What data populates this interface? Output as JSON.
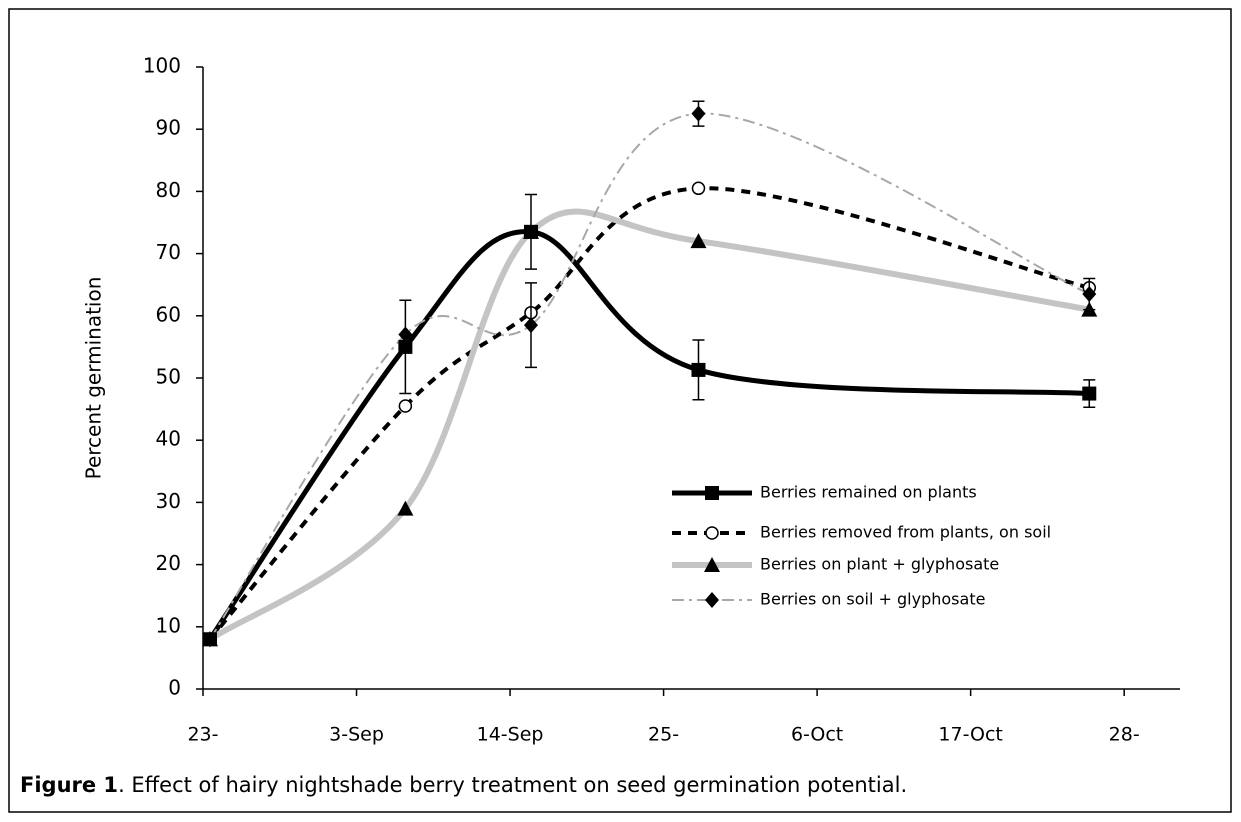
{
  "chart_data": {
    "type": "line",
    "ylabel": "Percent germination",
    "figure_label": "Figure 1",
    "caption": ". Effect of hairy nightshade berry treatment on seed germination potential.",
    "x": [
      235.5,
      249.5,
      258.5,
      270.5,
      298.5
    ],
    "xlim": [
      235,
      305
    ],
    "xticks": [
      {
        "value": 235,
        "label": "23-"
      },
      {
        "value": 246,
        "label": "3-Sep"
      },
      {
        "value": 257,
        "label": "14-Sep"
      },
      {
        "value": 268,
        "label": "25-"
      },
      {
        "value": 279,
        "label": "6-Oct"
      },
      {
        "value": 290,
        "label": "17-Oct"
      },
      {
        "value": 301,
        "label": "28-"
      }
    ],
    "ylim": [
      0,
      100
    ],
    "yticks": [
      0,
      10,
      20,
      30,
      40,
      50,
      60,
      70,
      80,
      90,
      100
    ],
    "series": [
      {
        "name": "Berries remained on plants",
        "color": "#000000",
        "marker": "square",
        "dash": "solid",
        "width": 5,
        "values": [
          8,
          55,
          73.5,
          51.3,
          47.5
        ],
        "errors": [
          null,
          7.5,
          6,
          4.8,
          2.2
        ]
      },
      {
        "name": "Berries removed from plants, on soil",
        "color": "#000000",
        "marker": "circle",
        "dash": "dash",
        "width": 4,
        "values": [
          8,
          45.5,
          60.5,
          80.5,
          64.5
        ]
      },
      {
        "name": "Berries on plant + glyphosate",
        "color": "#c4c4c4",
        "marker": "triangle",
        "dash": "solid",
        "width": 6,
        "values": [
          8,
          29,
          73.5,
          72,
          61
        ]
      },
      {
        "name": "Berries on soil + glyphosate",
        "color": "#a8a8a8",
        "marker": "diamond",
        "dash": "dashdot",
        "width": 2,
        "values": [
          8,
          57,
          58.5,
          92.5,
          63.5
        ],
        "errors": [
          null,
          null,
          6.8,
          2,
          2.5
        ]
      }
    ]
  }
}
